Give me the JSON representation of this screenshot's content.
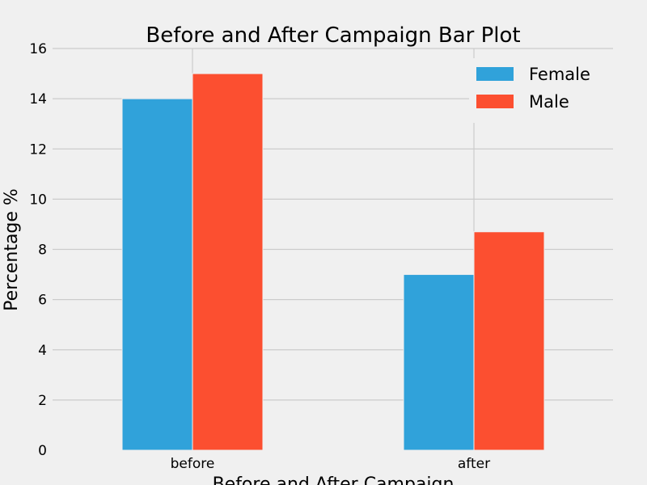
{
  "chart_data": {
    "type": "bar",
    "title": "Before and After Campaign Bar Plot",
    "xlabel": "Before and After Campaign",
    "ylabel": "Percentage %",
    "categories": [
      "before",
      "after"
    ],
    "series": [
      {
        "name": "Female",
        "color": "#30a2da",
        "values": [
          14.0,
          7.0
        ]
      },
      {
        "name": "Male",
        "color": "#fc4f30",
        "values": [
          15.0,
          8.7
        ]
      }
    ],
    "ylim": [
      0,
      16
    ],
    "yticks": [
      0,
      2,
      4,
      6,
      8,
      10,
      12,
      14,
      16
    ],
    "grid": true,
    "legend_position": "top-right"
  },
  "colors": {
    "background": "#f0f0f0",
    "grid": "#cbcbcb",
    "text": "#000000"
  }
}
